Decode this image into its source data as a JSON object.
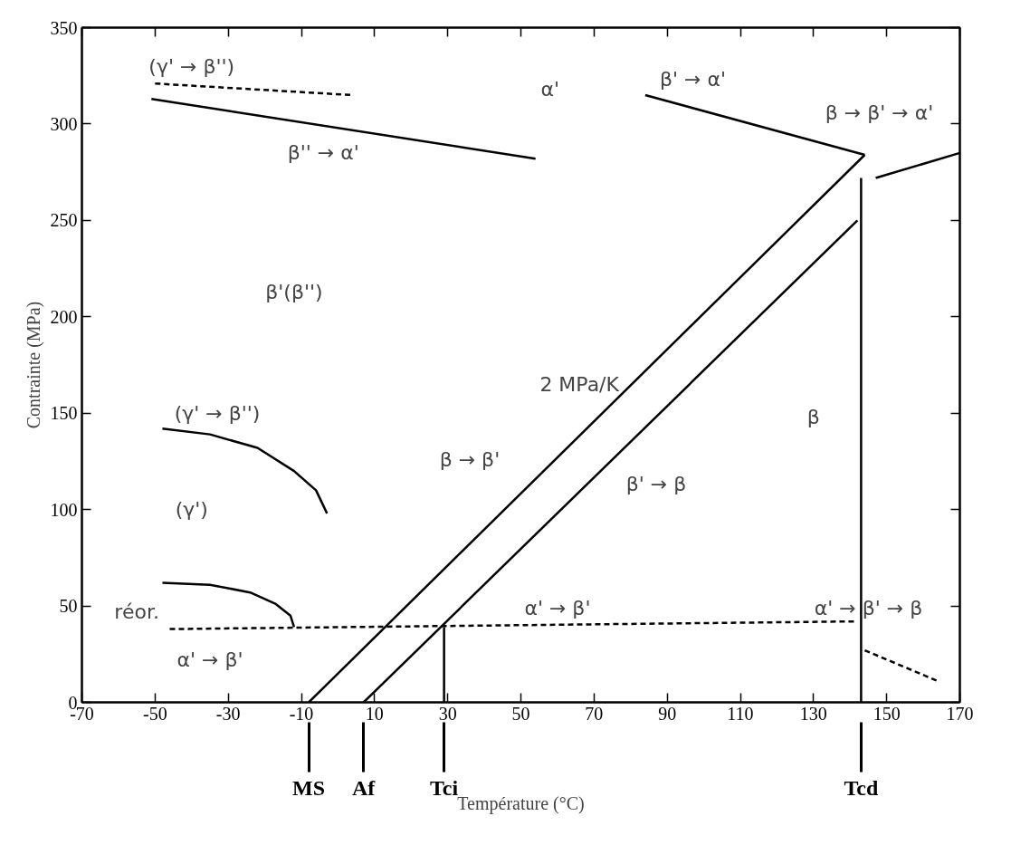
{
  "chart_data": {
    "type": "line",
    "xlabel": "Température (°C)",
    "ylabel": "Contrainte (MPa)",
    "xlim": [
      -70,
      170
    ],
    "ylim": [
      0,
      350
    ],
    "xticks": [
      -70,
      -50,
      -30,
      -10,
      10,
      30,
      50,
      70,
      90,
      110,
      130,
      150,
      170
    ],
    "yticks": [
      0,
      50,
      100,
      150,
      200,
      250,
      300,
      350
    ],
    "grid": false,
    "marker": "none",
    "series": [
      {
        "color": "#000000",
        "x": [
          -8,
          144
        ],
        "values": [
          0,
          284
        ]
      },
      {
        "color": "#000000",
        "x": [
          7,
          142
        ],
        "values": [
          0,
          250
        ]
      },
      {
        "color": "#000000",
        "x": [
          143,
          143
        ],
        "values": [
          0,
          272
        ]
      },
      {
        "color": "#000000",
        "x": [
          29,
          29
        ],
        "values": [
          0,
          39
        ]
      },
      {
        "color": "#000000",
        "x": [
          84,
          144
        ],
        "values": [
          315,
          284
        ]
      },
      {
        "color": "#000000",
        "x": [
          147,
          170
        ],
        "values": [
          272,
          285
        ]
      },
      {
        "color": "#000000",
        "x": [
          -51,
          54
        ],
        "values": [
          313,
          282
        ]
      },
      {
        "color": "#000000",
        "line_style": "dashed",
        "x": [
          -50,
          4
        ],
        "values": [
          321,
          315
        ]
      },
      {
        "color": "#000000",
        "line_style": "dashed",
        "x": [
          -46,
          142
        ],
        "values": [
          38,
          42
        ]
      },
      {
        "color": "#000000",
        "line_style": "dashed",
        "x": [
          144,
          164
        ],
        "values": [
          27,
          11
        ]
      },
      {
        "color": "#000000",
        "x": [
          -48,
          -35,
          -22,
          -12,
          -6,
          -3
        ],
        "values": [
          142,
          139,
          132,
          120,
          110,
          98
        ]
      },
      {
        "color": "#000000",
        "x": [
          -48,
          -35,
          -24,
          -17,
          -13,
          -12
        ],
        "values": [
          62,
          61,
          57,
          51,
          45,
          39
        ]
      }
    ],
    "annotations": [
      "(γ' → β'')",
      "α'",
      "β' → α'",
      "β → β' → α'",
      "β'' → α'",
      "β'(β'')",
      "2 MPa/K",
      "(γ' → β'')",
      "β → β'",
      "β' → β",
      "β",
      "(γ')",
      "réor.",
      "α' → β'",
      "α' → β'",
      "α' → β' → β",
      "MS",
      "Af",
      "Tci",
      "Tcd"
    ]
  }
}
